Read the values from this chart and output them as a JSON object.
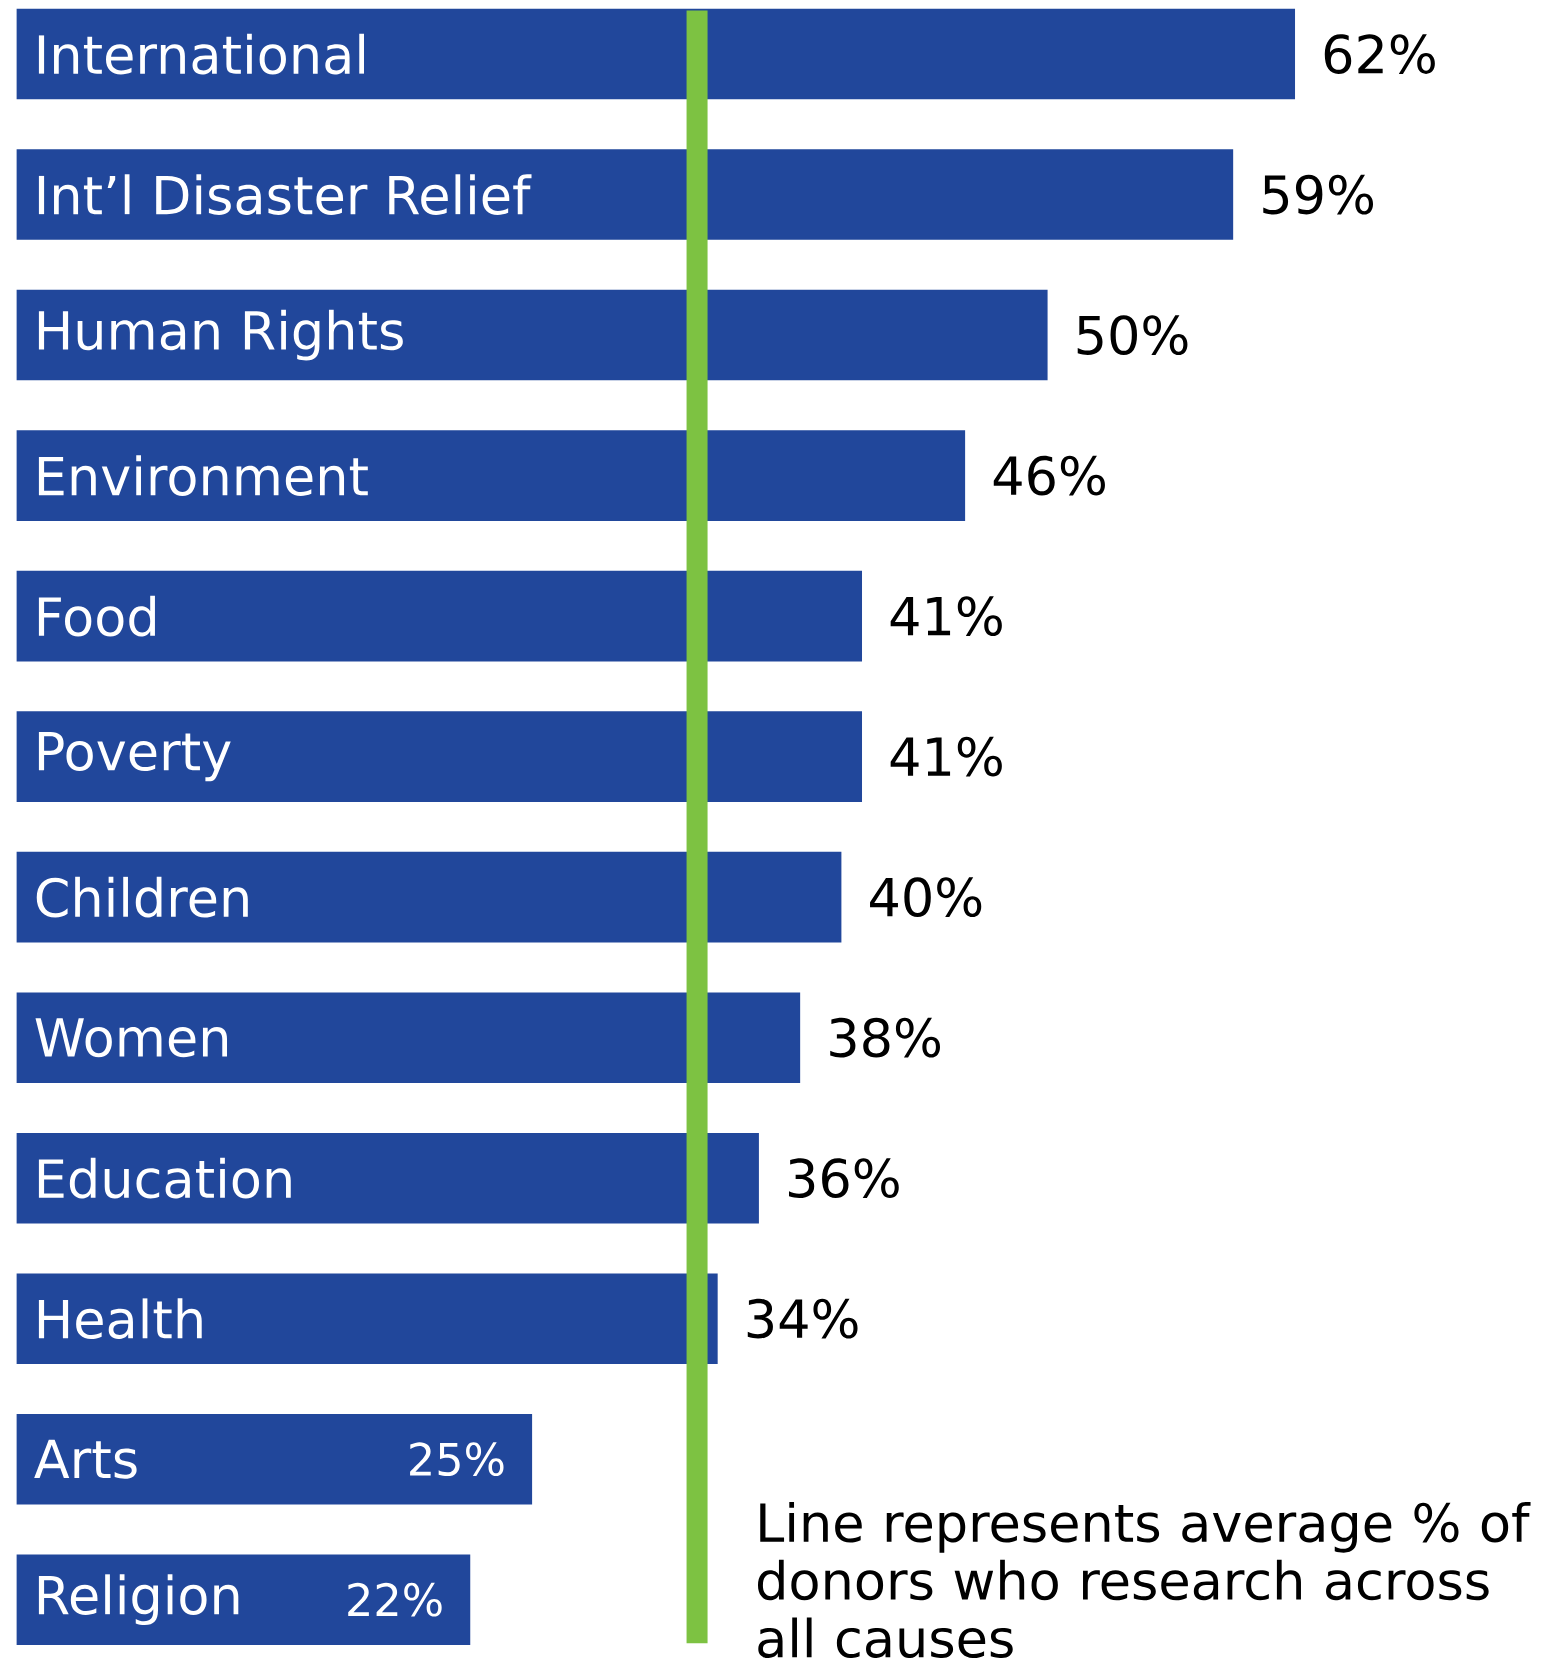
{
  "chart_data": {
    "type": "bar",
    "orientation": "horizontal",
    "categories": [
      "International",
      "Int’l Disaster Relief",
      "Human Rights",
      "Environment",
      "Food",
      "Poverty",
      "Children",
      "Women",
      "Education",
      "Health",
      "Arts",
      "Religion"
    ],
    "values": [
      62,
      59,
      50,
      46,
      41,
      41,
      40,
      38,
      36,
      34,
      25,
      22
    ],
    "value_labels": [
      "62%",
      "59%",
      "50%",
      "46%",
      "41%",
      "41%",
      "40%",
      "38%",
      "36%",
      "34%",
      "25%",
      "22%"
    ],
    "color": "#21479b",
    "ref_lines": [
      {
        "axis": "x",
        "value": 33,
        "label": "Line represents average % of donors who research across all causes",
        "color": "#7dc242"
      }
    ]
  }
}
